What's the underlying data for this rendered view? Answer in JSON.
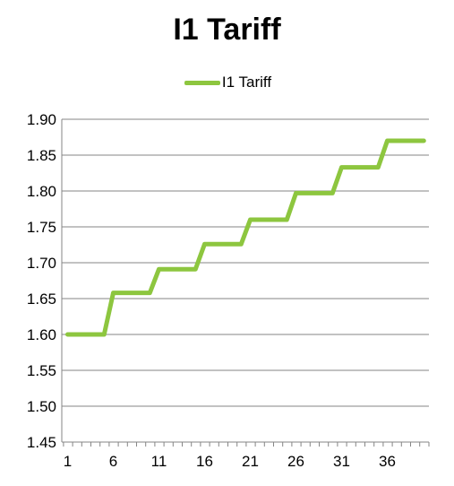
{
  "chart_data": {
    "type": "line",
    "title": "I1 Tariff",
    "xlabel": "",
    "ylabel": "",
    "x": [
      1,
      2,
      3,
      4,
      5,
      6,
      7,
      8,
      9,
      10,
      11,
      12,
      13,
      14,
      15,
      16,
      17,
      18,
      19,
      20,
      21,
      22,
      23,
      24,
      25,
      26,
      27,
      28,
      29,
      30,
      31,
      32,
      33,
      34,
      35,
      36,
      37,
      38,
      39,
      40
    ],
    "series": [
      {
        "name": "I1 Tariff",
        "color": "#8DC63F",
        "values": [
          1.6,
          1.6,
          1.6,
          1.6,
          1.6,
          1.658,
          1.658,
          1.658,
          1.658,
          1.658,
          1.691,
          1.691,
          1.691,
          1.691,
          1.691,
          1.726,
          1.726,
          1.726,
          1.726,
          1.726,
          1.76,
          1.76,
          1.76,
          1.76,
          1.76,
          1.797,
          1.797,
          1.797,
          1.797,
          1.797,
          1.833,
          1.833,
          1.833,
          1.833,
          1.833,
          1.87,
          1.87,
          1.87,
          1.87,
          1.87
        ]
      }
    ],
    "ylim": [
      1.45,
      1.9
    ],
    "yticks": [
      "1.45",
      "1.50",
      "1.55",
      "1.60",
      "1.65",
      "1.70",
      "1.75",
      "1.80",
      "1.85",
      "1.90"
    ],
    "xtick_labels": [
      "1",
      "6",
      "11",
      "16",
      "21",
      "26",
      "31",
      "36"
    ],
    "grid": true,
    "legend_position": "top"
  }
}
